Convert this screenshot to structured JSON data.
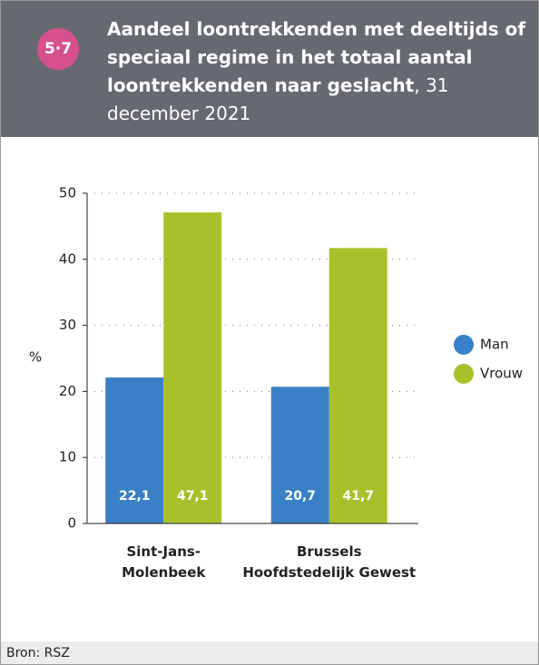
{
  "badge": "5·7",
  "chart_data": {
    "type": "bar",
    "title": "Aandeel loontrekkenden met deeltijds of speciaal regime in het totaal aantal loontrekkenden naar geslacht",
    "subtitle": ", 31 december 2021",
    "y_label": "%",
    "categories": [
      "Sint-Jans-\nMolenbeek",
      "Brussels\nHoofdstedelijk Gewest"
    ],
    "series": [
      {
        "name": "Man",
        "color": "#3a80c6",
        "values": [
          22.1,
          20.7
        ],
        "value_labels": [
          "22,1",
          "20,7"
        ]
      },
      {
        "name": "Vrouw",
        "color": "#a8c12a",
        "values": [
          47.1,
          41.7
        ],
        "value_labels": [
          "47,1",
          "41,7"
        ]
      }
    ],
    "ylim": [
      0,
      50
    ],
    "yticks": [
      0,
      10,
      20,
      30,
      40,
      50
    ],
    "grid": true,
    "legend": "right"
  },
  "source": "Bron: RSZ"
}
